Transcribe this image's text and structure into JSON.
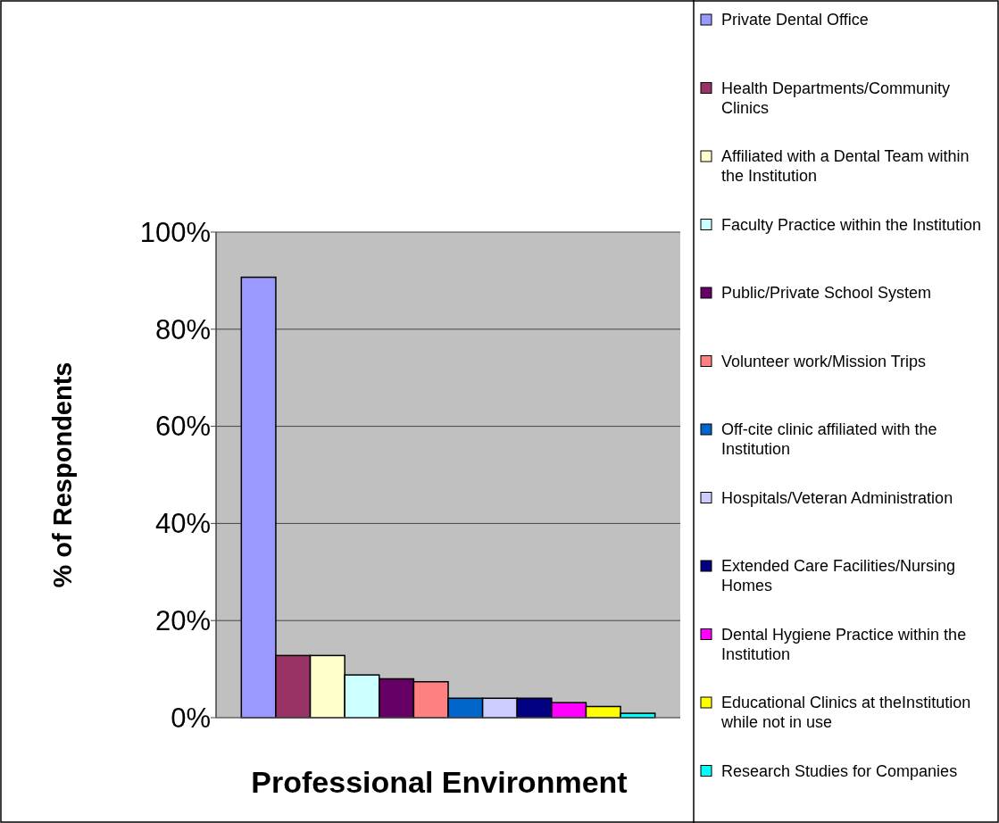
{
  "chart_data": {
    "type": "bar",
    "xlabel": "Professional Environment",
    "ylabel": "% of Respondents",
    "categories": [
      null
    ],
    "series": [
      {
        "name": "Private Dental Office",
        "color": "#9999ff",
        "values": [
          90.7
        ]
      },
      {
        "name": "Health Departments/Community Clinics",
        "color": "#993366",
        "values": [
          12.8
        ]
      },
      {
        "name": "Affiliated with a Dental Team within the Institution",
        "color": "#ffffcc",
        "values": [
          12.8
        ]
      },
      {
        "name": "Faculty Practice within the Institution",
        "color": "#ccffff",
        "values": [
          8.8
        ]
      },
      {
        "name": "Public/Private School System",
        "color": "#660066",
        "values": [
          8.0
        ]
      },
      {
        "name": "Volunteer work/Mission Trips",
        "color": "#ff8080",
        "values": [
          7.4
        ]
      },
      {
        "name": "Off-cite clinic affiliated with the Institution",
        "color": "#0066cc",
        "values": [
          4.0
        ]
      },
      {
        "name": "Hospitals/Veteran Administration",
        "color": "#ccccff",
        "values": [
          4.0
        ]
      },
      {
        "name": "Extended Care Facilities/Nursing Homes",
        "color": "#000080",
        "values": [
          4.0
        ]
      },
      {
        "name": "Dental Hygiene Practice within the Institution",
        "color": "#ff00ff",
        "values": [
          3.1
        ]
      },
      {
        "name": "Educational Clinics at theInstitution while not in use",
        "color": "#ffff00",
        "values": [
          2.3
        ]
      },
      {
        "name": "Research Studies for Companies",
        "color": "#00ffff",
        "values": [
          0.9
        ]
      }
    ],
    "ylim": [
      0,
      100
    ],
    "yticks": [
      {
        "value": 0,
        "label": "0%"
      },
      {
        "value": 20,
        "label": "20%"
      },
      {
        "value": 40,
        "label": "40%"
      },
      {
        "value": 60,
        "label": "60%"
      },
      {
        "value": 80,
        "label": "80%"
      },
      {
        "value": 100,
        "label": "100%"
      }
    ],
    "grid": "y",
    "legend": "right"
  }
}
